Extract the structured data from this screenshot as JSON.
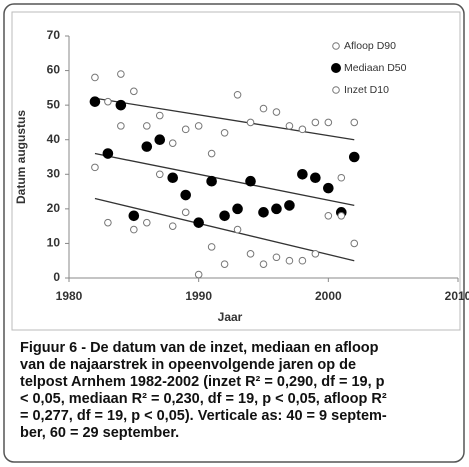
{
  "chart_data": {
    "type": "scatter",
    "x_label": "Jaar",
    "y_label": "Datum augustus",
    "xlim": [
      1980,
      2010
    ],
    "xticks": [
      1980,
      1990,
      2000,
      2010
    ],
    "ylim": [
      0,
      70
    ],
    "yticks": [
      0,
      10,
      20,
      30,
      40,
      50,
      60,
      70
    ],
    "x": [
      1982,
      1983,
      1984,
      1985,
      1986,
      1987,
      1988,
      1989,
      1990,
      1991,
      1992,
      1993,
      1994,
      1995,
      1996,
      1997,
      1998,
      1999,
      2000,
      2001,
      2002
    ],
    "trend_x": [
      1982,
      2002
    ],
    "series": [
      {
        "name": "Afloop D90",
        "color": "#777777",
        "marker": "open",
        "values": [
          58,
          51,
          59,
          54,
          44,
          47,
          39,
          43,
          44,
          36,
          42,
          53,
          45,
          49,
          48,
          44,
          43,
          45,
          45,
          29,
          45
        ],
        "trend": [
          52,
          40
        ]
      },
      {
        "name": "Mediaan D50",
        "color": "#000000",
        "marker": "filled",
        "values": [
          51,
          36,
          50,
          18,
          38,
          40,
          29,
          24,
          16,
          28,
          18,
          20,
          28,
          19,
          20,
          21,
          30,
          29,
          26,
          19,
          35
        ],
        "trend": [
          36,
          21
        ]
      },
      {
        "name": "Inzet D10",
        "color": "#777777",
        "marker": "open",
        "values": [
          32,
          16,
          44,
          14,
          16,
          30,
          15,
          19,
          1,
          9,
          4,
          14,
          7,
          4,
          6,
          5,
          5,
          7,
          18,
          18,
          10
        ],
        "trend": [
          23,
          5
        ]
      }
    ],
    "caption": [
      "Figuur 6 - De datum van de inzet, mediaan en afloop",
      "van de najaarstrek in opeenvolgende jaren op de",
      "telpost Arnhem 1982-2002 (inzet R² = 0,290, df = 19, p",
      "< 0,05, mediaan R² = 0,230, df = 19, p < 0,05, afloop R²",
      "= 0,277, df = 19, p < 0,05). Verticale as: 40 = 9 septem-",
      "ber, 60 = 29 september."
    ]
  }
}
